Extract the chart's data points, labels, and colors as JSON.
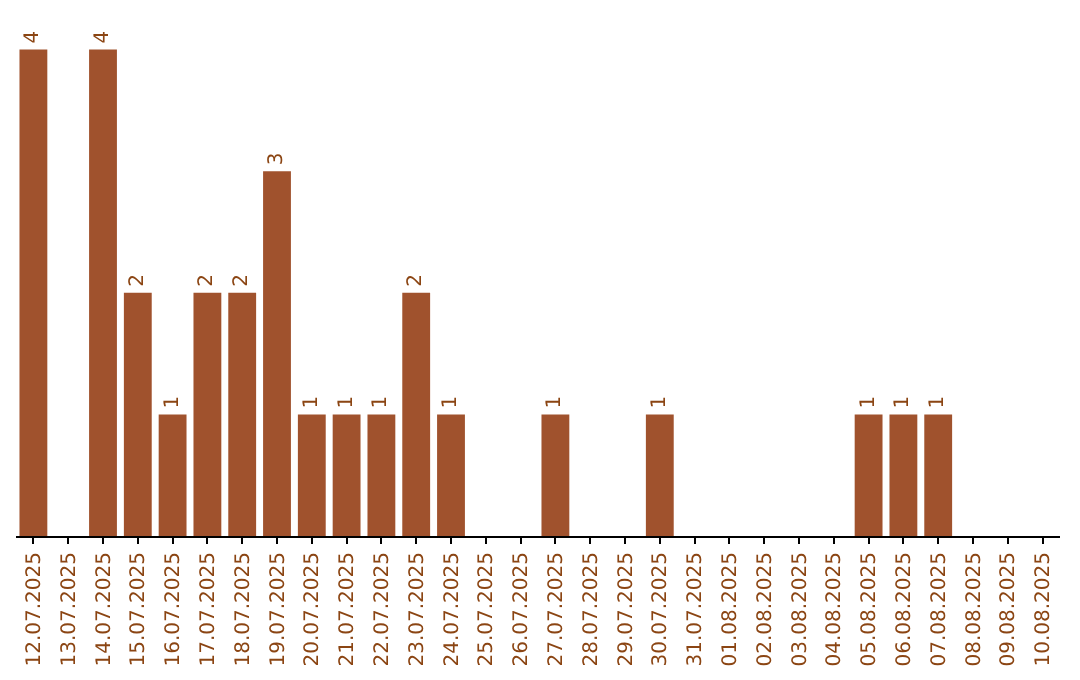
{
  "chart_data": {
    "type": "bar",
    "categories": [
      "12.07.2025",
      "13.07.2025",
      "14.07.2025",
      "15.07.2025",
      "16.07.2025",
      "17.07.2025",
      "18.07.2025",
      "19.07.2025",
      "20.07.2025",
      "21.07.2025",
      "22.07.2025",
      "23.07.2025",
      "24.07.2025",
      "25.07.2025",
      "26.07.2025",
      "27.07.2025",
      "28.07.2025",
      "29.07.2025",
      "30.07.2025",
      "31.07.2025",
      "01.08.2025",
      "02.08.2025",
      "03.08.2025",
      "04.08.2025",
      "05.08.2025",
      "06.08.2025",
      "07.08.2025",
      "08.08.2025",
      "09.08.2025",
      "10.08.2025"
    ],
    "values": [
      4,
      0,
      4,
      2,
      1,
      2,
      2,
      3,
      1,
      1,
      1,
      2,
      1,
      0,
      0,
      1,
      0,
      0,
      1,
      0,
      0,
      0,
      0,
      0,
      1,
      1,
      1,
      0,
      0,
      0
    ],
    "value_labels": [
      "4",
      null,
      "4",
      "2",
      "1",
      "2",
      "2",
      "3",
      "1",
      "1",
      "1",
      "2",
      "1",
      null,
      null,
      "1",
      null,
      null,
      "1",
      null,
      null,
      null,
      null,
      null,
      "1",
      "1",
      "1",
      null,
      null,
      null
    ],
    "color": "#a0522d",
    "grid": false,
    "legend": false
  }
}
